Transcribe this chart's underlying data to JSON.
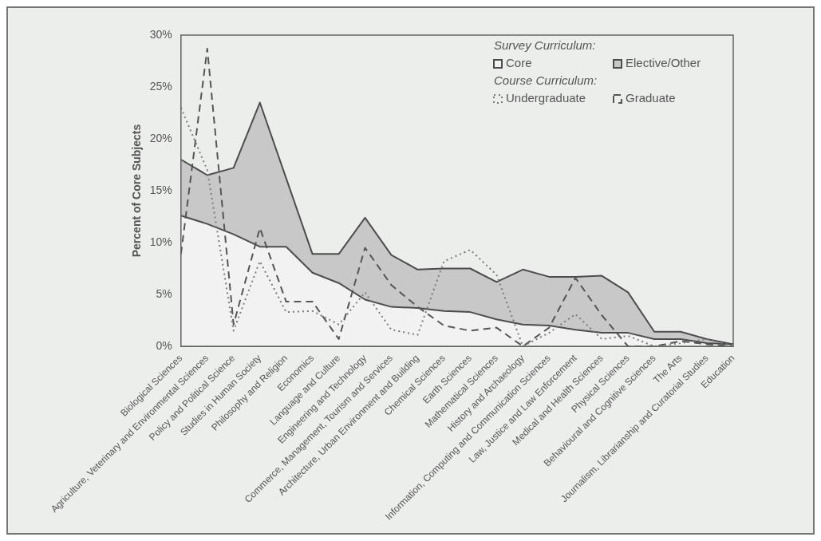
{
  "chart_data": {
    "type": "area",
    "ylabel": "Percent of Core Subjects",
    "legend_title": "Survey Curriculum:",
    "annotations": [
      "Course Curriculum:"
    ],
    "categories": [
      "Biological Sciences",
      "Agriculture, Veterinary and Environmental Sciences",
      "Policy and Political Science",
      "Studies in Human Society",
      "Philosophy and Religion",
      "Economics",
      "Language and Culture",
      "Engineering and Technology",
      "Commerce, Management, Tourism and Services",
      "Architecture, Urban Environment and Building",
      "Chemical Sciences",
      "Earth Sciences",
      "Mathematical Sciences",
      "History and Archaeology",
      "Information, Computing and Communication Sciences",
      "Law, Justice and Law Enforcement",
      "Medical and Health Sciences",
      "Physical Sciences",
      "Behavioural and Cognitive Sciences",
      "The Arts",
      "Journalism, Librarianship and Curatorial Studies",
      "Education"
    ],
    "stacked": true,
    "series": [
      {
        "name": "Core",
        "color": "#f2f2f2",
        "values": [
          12.6,
          11.8,
          10.8,
          9.6,
          9.6,
          7.1,
          6.1,
          4.5,
          3.8,
          3.7,
          3.4,
          3.3,
          2.6,
          2.1,
          2.0,
          1.6,
          1.3,
          1.3,
          0.7,
          0.7,
          0.3,
          0.2
        ]
      },
      {
        "name": "Elective/Other",
        "color": "#c8c8c8",
        "values": [
          5.4,
          4.7,
          6.4,
          13.9,
          6.6,
          1.8,
          2.8,
          7.9,
          5.0,
          3.7,
          4.1,
          4.2,
          3.6,
          5.3,
          4.7,
          5.1,
          5.5,
          3.9,
          0.7,
          0.7,
          0.4,
          0
        ]
      },
      {
        "name": "Undergraduate",
        "type": "line",
        "color": "#7a7a7a",
        "line_style": "dotted",
        "values": [
          23.0,
          17.0,
          1.5,
          8.2,
          3.3,
          3.4,
          2.1,
          5.2,
          1.6,
          1.1,
          8.2,
          9.3,
          6.9,
          0,
          1.3,
          3.1,
          0.7,
          1.0,
          0,
          0.3,
          0.7,
          0
        ]
      },
      {
        "name": "Graduate",
        "type": "line",
        "color": "#555555",
        "line_style": "dashed",
        "values": [
          8.9,
          28.7,
          2.1,
          11.4,
          4.3,
          4.3,
          0.7,
          9.5,
          5.9,
          3.8,
          2.0,
          1.5,
          1.8,
          0,
          1.8,
          6.6,
          3.0,
          0,
          0,
          0.5,
          0.2,
          0
        ]
      }
    ],
    "ylim": [
      0,
      30
    ],
    "yticks": [
      {
        "value": 0,
        "label": "0%"
      },
      {
        "value": 5,
        "label": "5%"
      },
      {
        "value": 10,
        "label": "10%"
      },
      {
        "value": 15,
        "label": "15%"
      },
      {
        "value": 20,
        "label": "20%"
      },
      {
        "value": 25,
        "label": "25%"
      },
      {
        "value": 30,
        "label": "30%"
      }
    ],
    "grid": false,
    "legend": "top right",
    "marker": "none"
  }
}
